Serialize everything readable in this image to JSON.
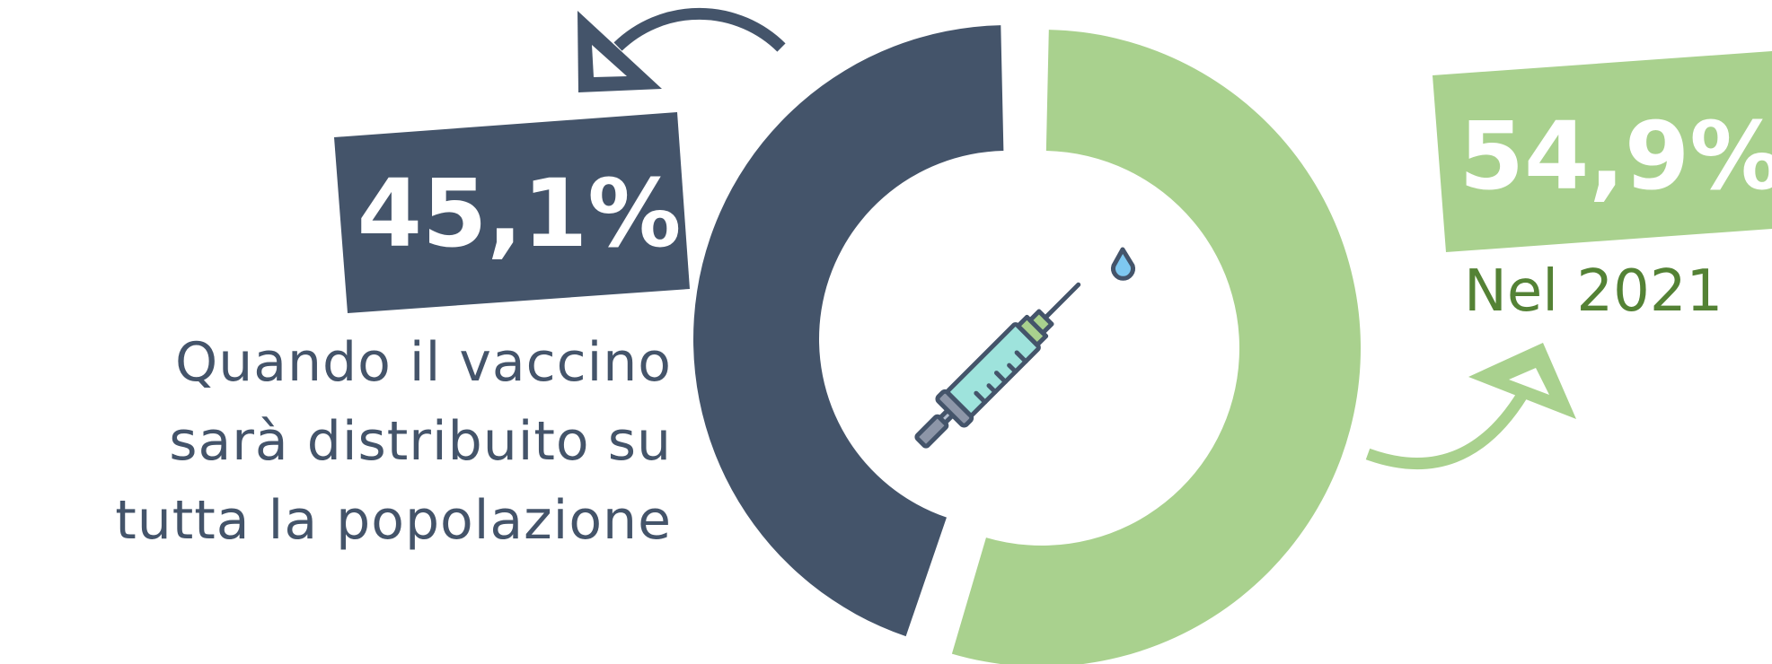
{
  "chart_data": {
    "type": "pie",
    "donut": true,
    "slices": [
      {
        "label": "Quando il vaccino sarà distribuito su tutta la popolazione",
        "value": 45.1,
        "display": "45,1%",
        "color": "#44546a"
      },
      {
        "label": "Nel 2021",
        "value": 54.9,
        "display": "54,9%",
        "color": "#a9d18e"
      }
    ]
  },
  "labels": {
    "caption_lines": [
      "Quando il vaccino",
      "sarà distribuito su",
      "tutta la popolazione"
    ],
    "year": "Nel 2021"
  },
  "icons": [
    "syringe-icon",
    "curved-arrow-icon"
  ],
  "colors": {
    "dark": "#44546a",
    "green": "#a9d18e",
    "green_text": "#548235"
  }
}
